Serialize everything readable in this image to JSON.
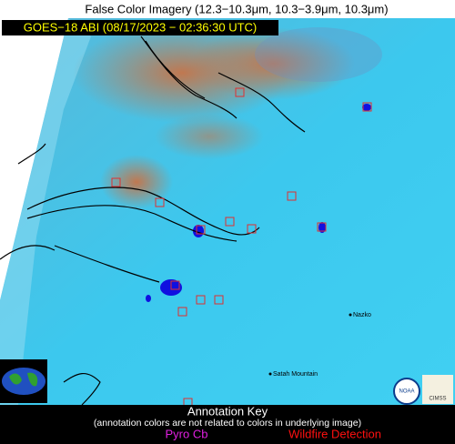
{
  "header": {
    "title": "False Color Imagery (12.3−10.3μm, 10.3−3.9μm, 10.3μm)",
    "subtitle": "GOES−18 ABI (08/17/2023 − 02:36:30 UTC)"
  },
  "places": [
    "Nazko",
    "Satah Mountain"
  ],
  "logos": [
    "NOAA",
    "CIMSS"
  ],
  "legend": {
    "title": "Annotation Key",
    "note": "(annotation colors are not related to colors in underlying image)",
    "items": [
      "Pyro Cb",
      "Wildfire Detection"
    ]
  }
}
